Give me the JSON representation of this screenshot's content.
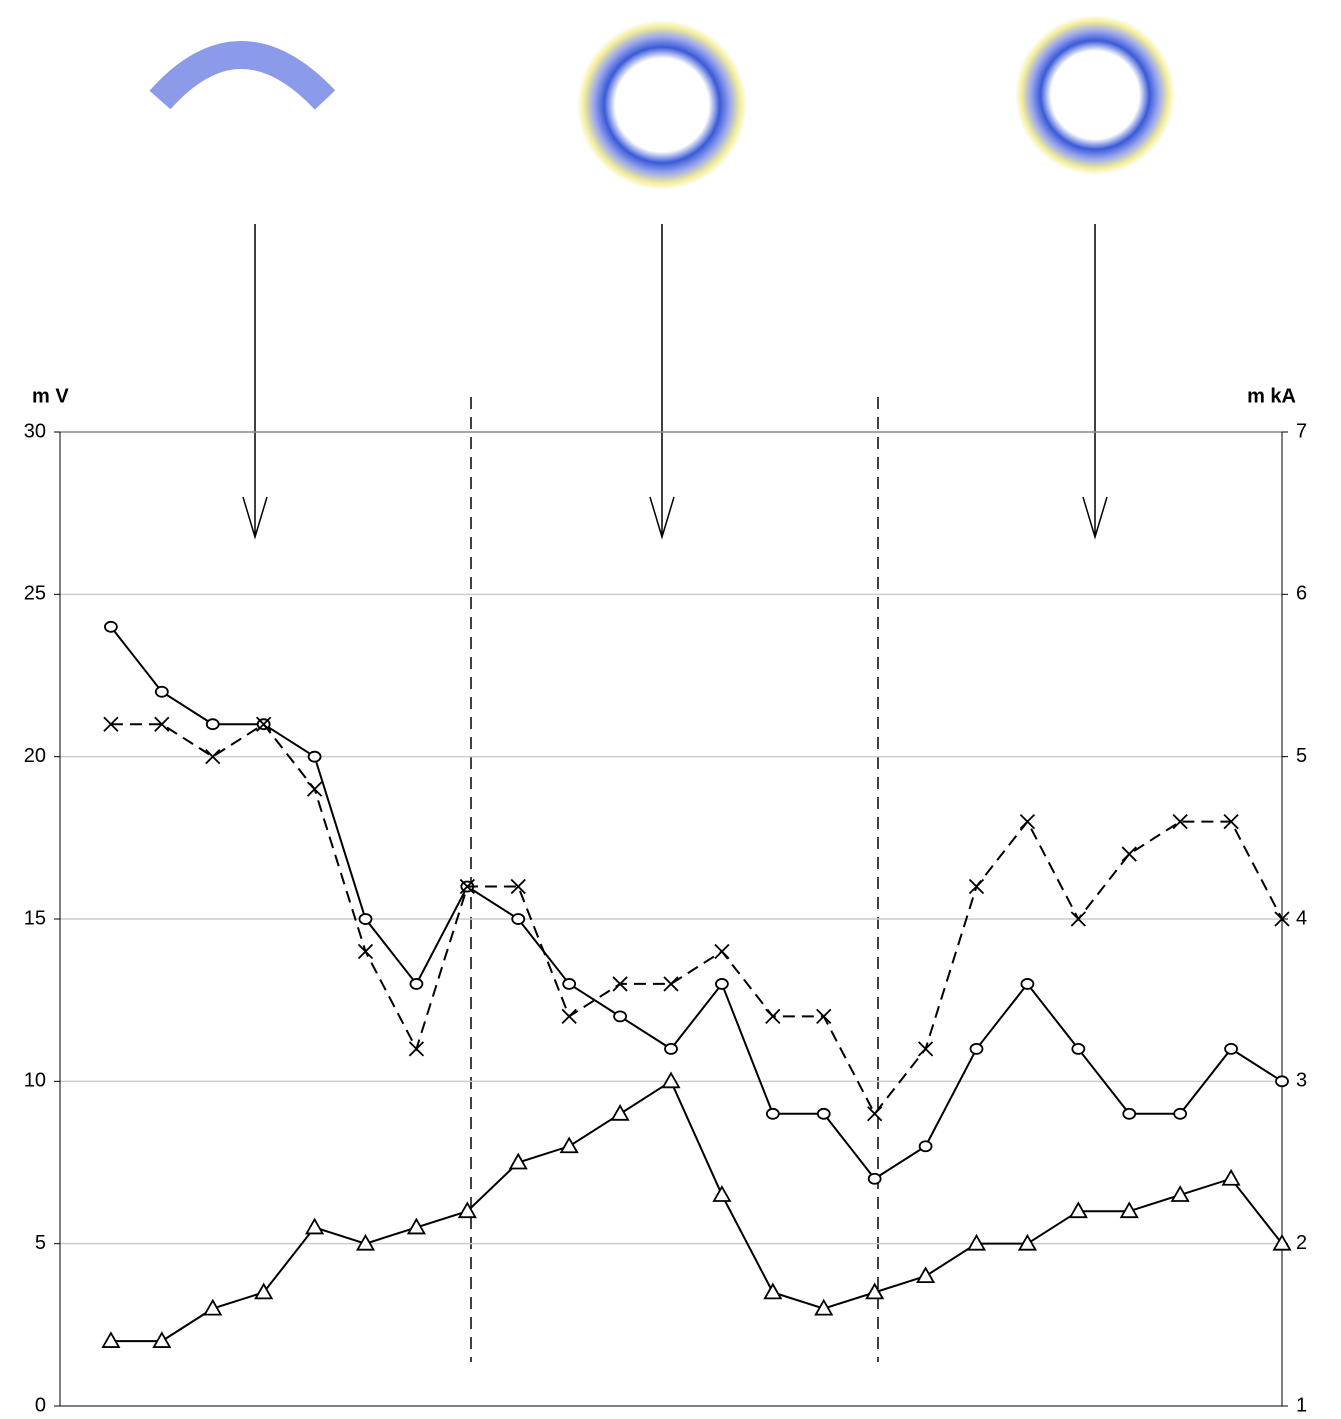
{
  "chart_data": {
    "type": "line",
    "y_label": "m V",
    "y2_label": "m kA",
    "x": [
      1,
      2,
      3,
      4,
      5,
      6,
      7,
      8,
      9,
      10,
      11,
      12,
      13,
      14,
      15,
      16,
      17,
      18,
      19,
      20,
      21,
      22,
      23,
      24
    ],
    "xlim": [
      0,
      24
    ],
    "ylim": [
      0,
      30
    ],
    "yticks": [
      0,
      5,
      10,
      15,
      20,
      25,
      30
    ],
    "y2lim": [
      1,
      7
    ],
    "y2ticks": [
      1,
      2,
      3,
      4,
      5,
      6,
      7
    ],
    "grid": true,
    "series": [
      {
        "marker": "circle",
        "color": "#000000",
        "dash": false,
        "values": [
          24,
          22,
          21,
          21,
          20,
          15,
          13,
          16,
          15,
          13,
          12,
          11,
          13,
          9,
          9,
          7,
          8,
          11,
          13,
          11,
          9,
          9,
          11,
          10
        ]
      },
      {
        "marker": "cross",
        "color": "#000000",
        "dash": true,
        "values": [
          21,
          21,
          20,
          21,
          19,
          14,
          11,
          16,
          16,
          12,
          13,
          13,
          14,
          12,
          12,
          9,
          11,
          16,
          18,
          15,
          17,
          18,
          18,
          15
        ]
      },
      {
        "marker": "triangle",
        "color": "#000000",
        "dash": false,
        "axis": "y2",
        "values": [
          1.4,
          1.4,
          1.6,
          1.7,
          2.1,
          2.0,
          2.1,
          2.2,
          2.5,
          2.6,
          2.8,
          3.0,
          2.3,
          1.7,
          1.6,
          1.7,
          1.8,
          2.0,
          2.0,
          2.2,
          2.2,
          2.3,
          2.4,
          2.0
        ]
      }
    ]
  }
}
